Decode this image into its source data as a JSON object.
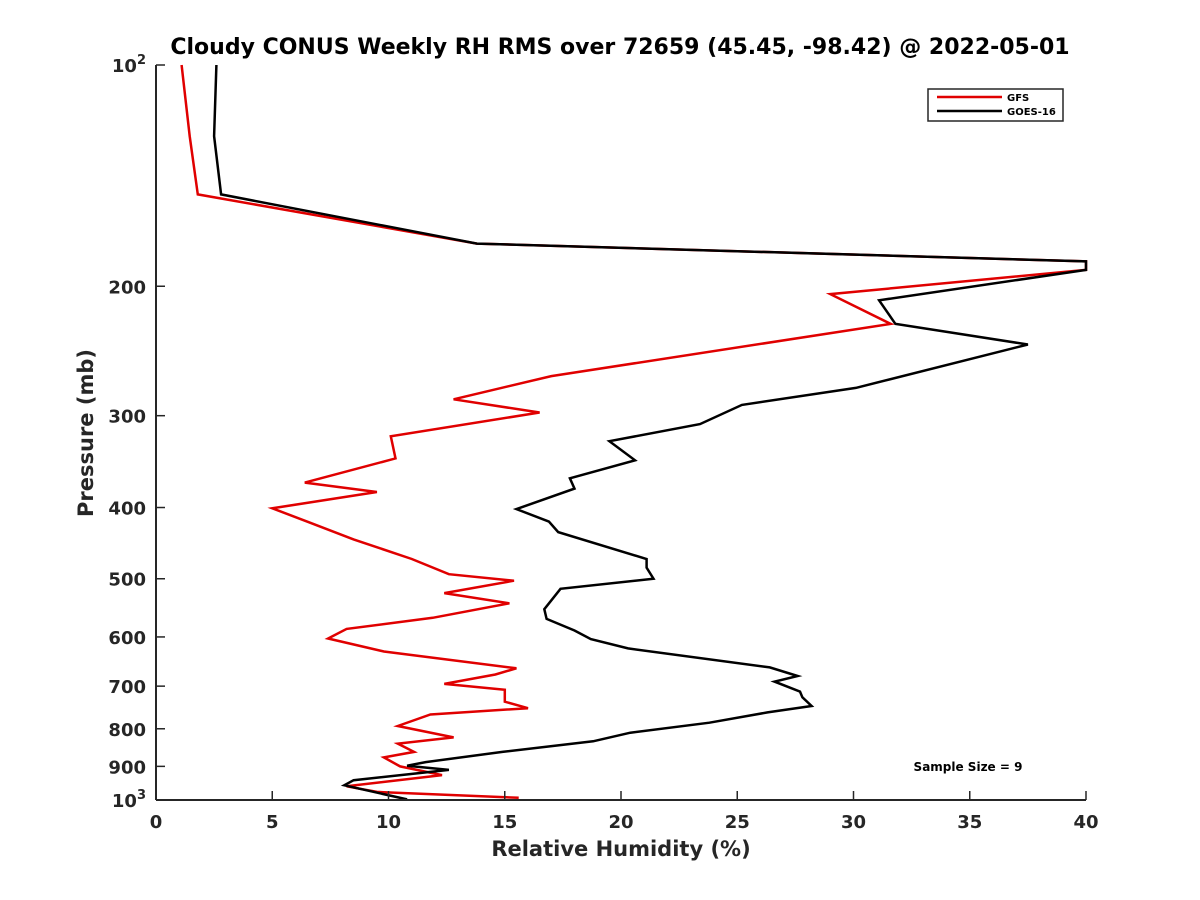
{
  "chart_data": {
    "type": "line",
    "title": "Cloudy CONUS Weekly RH RMS over 72659 (45.45, -98.42) @ 2022-05-01",
    "xlabel": "Relative Humidity (%)",
    "ylabel": "Pressure (mb)",
    "xlim": [
      0,
      40
    ],
    "ylim": [
      100,
      1000
    ],
    "y_scale": "log",
    "y_reversed": true,
    "grid": false,
    "legend_position": "top-right",
    "x_ticks": [
      "0",
      "5",
      "10",
      "15",
      "20",
      "25",
      "30",
      "35",
      "40"
    ],
    "y_ticks": [
      {
        "value": 100,
        "base": "10",
        "exp": "2"
      },
      {
        "value": 200,
        "label": "200"
      },
      {
        "value": 300,
        "label": "300"
      },
      {
        "value": 400,
        "label": "400"
      },
      {
        "value": 500,
        "label": "500"
      },
      {
        "value": 600,
        "label": "600"
      },
      {
        "value": 700,
        "label": "700"
      },
      {
        "value": 800,
        "label": "800"
      },
      {
        "value": 900,
        "label": "900"
      },
      {
        "value": 1000,
        "base": "10",
        "exp": "3"
      }
    ],
    "annotation": "Sample Size = 9",
    "series": [
      {
        "name": "GFS",
        "color": "#e00000",
        "points": [
          [
            1.1,
            100
          ],
          [
            1.45,
            125
          ],
          [
            1.8,
            150
          ],
          [
            13.8,
            175
          ],
          [
            40,
            185
          ],
          [
            40,
            190
          ],
          [
            29,
            205
          ],
          [
            31.6,
            225
          ],
          [
            17,
            265
          ],
          [
            12.8,
            285
          ],
          [
            16.5,
            297
          ],
          [
            10.1,
            320
          ],
          [
            10.3,
            343
          ],
          [
            6.4,
            370
          ],
          [
            9.5,
            381
          ],
          [
            5,
            401
          ],
          [
            6.5,
            418
          ],
          [
            8.5,
            442
          ],
          [
            11,
            470
          ],
          [
            12.6,
            493
          ],
          [
            15.4,
            503
          ],
          [
            12.4,
            523
          ],
          [
            15.2,
            540
          ],
          [
            11.9,
            565
          ],
          [
            8.2,
            585
          ],
          [
            7.4,
            603
          ],
          [
            9.8,
            628
          ],
          [
            15.5,
            662
          ],
          [
            14.6,
            675
          ],
          [
            12.4,
            695
          ],
          [
            15,
            708
          ],
          [
            15,
            735
          ],
          [
            16,
            750
          ],
          [
            11.8,
            765
          ],
          [
            10.4,
            793
          ],
          [
            12.8,
            822
          ],
          [
            10.4,
            838
          ],
          [
            11.1,
            860
          ],
          [
            9.8,
            875
          ],
          [
            10.5,
            900
          ],
          [
            12.3,
            925
          ],
          [
            8.2,
            958
          ],
          [
            9.5,
            975
          ],
          [
            15.6,
            993
          ]
        ]
      },
      {
        "name": "GOES-16",
        "color": "#000000",
        "points": [
          [
            2.6,
            100
          ],
          [
            2.5,
            125
          ],
          [
            2.8,
            150
          ],
          [
            13.8,
            175
          ],
          [
            40,
            185
          ],
          [
            40,
            190
          ],
          [
            31.1,
            209
          ],
          [
            31.8,
            225
          ],
          [
            37.5,
            240
          ],
          [
            30.1,
            275
          ],
          [
            25.2,
            290
          ],
          [
            23.4,
            308
          ],
          [
            19.5,
            325
          ],
          [
            20.6,
            345
          ],
          [
            17.8,
            365
          ],
          [
            18,
            377
          ],
          [
            15.5,
            402
          ],
          [
            16.9,
            418
          ],
          [
            17.3,
            432
          ],
          [
            21.1,
            470
          ],
          [
            21.1,
            483
          ],
          [
            21.4,
            500
          ],
          [
            17.4,
            516
          ],
          [
            16.7,
            550
          ],
          [
            16.8,
            567
          ],
          [
            18,
            588
          ],
          [
            18.7,
            604
          ],
          [
            20.3,
            622
          ],
          [
            26.4,
            660
          ],
          [
            27.6,
            678
          ],
          [
            26.6,
            690
          ],
          [
            27.7,
            712
          ],
          [
            27.8,
            725
          ],
          [
            28.2,
            745
          ],
          [
            26.3,
            760
          ],
          [
            23.8,
            785
          ],
          [
            20.4,
            810
          ],
          [
            18.8,
            832
          ],
          [
            14.9,
            860
          ],
          [
            11.6,
            888
          ],
          [
            10.8,
            898
          ],
          [
            12.6,
            910
          ],
          [
            8.5,
            940
          ],
          [
            8.1,
            955
          ],
          [
            10.8,
            998
          ]
        ]
      }
    ]
  }
}
